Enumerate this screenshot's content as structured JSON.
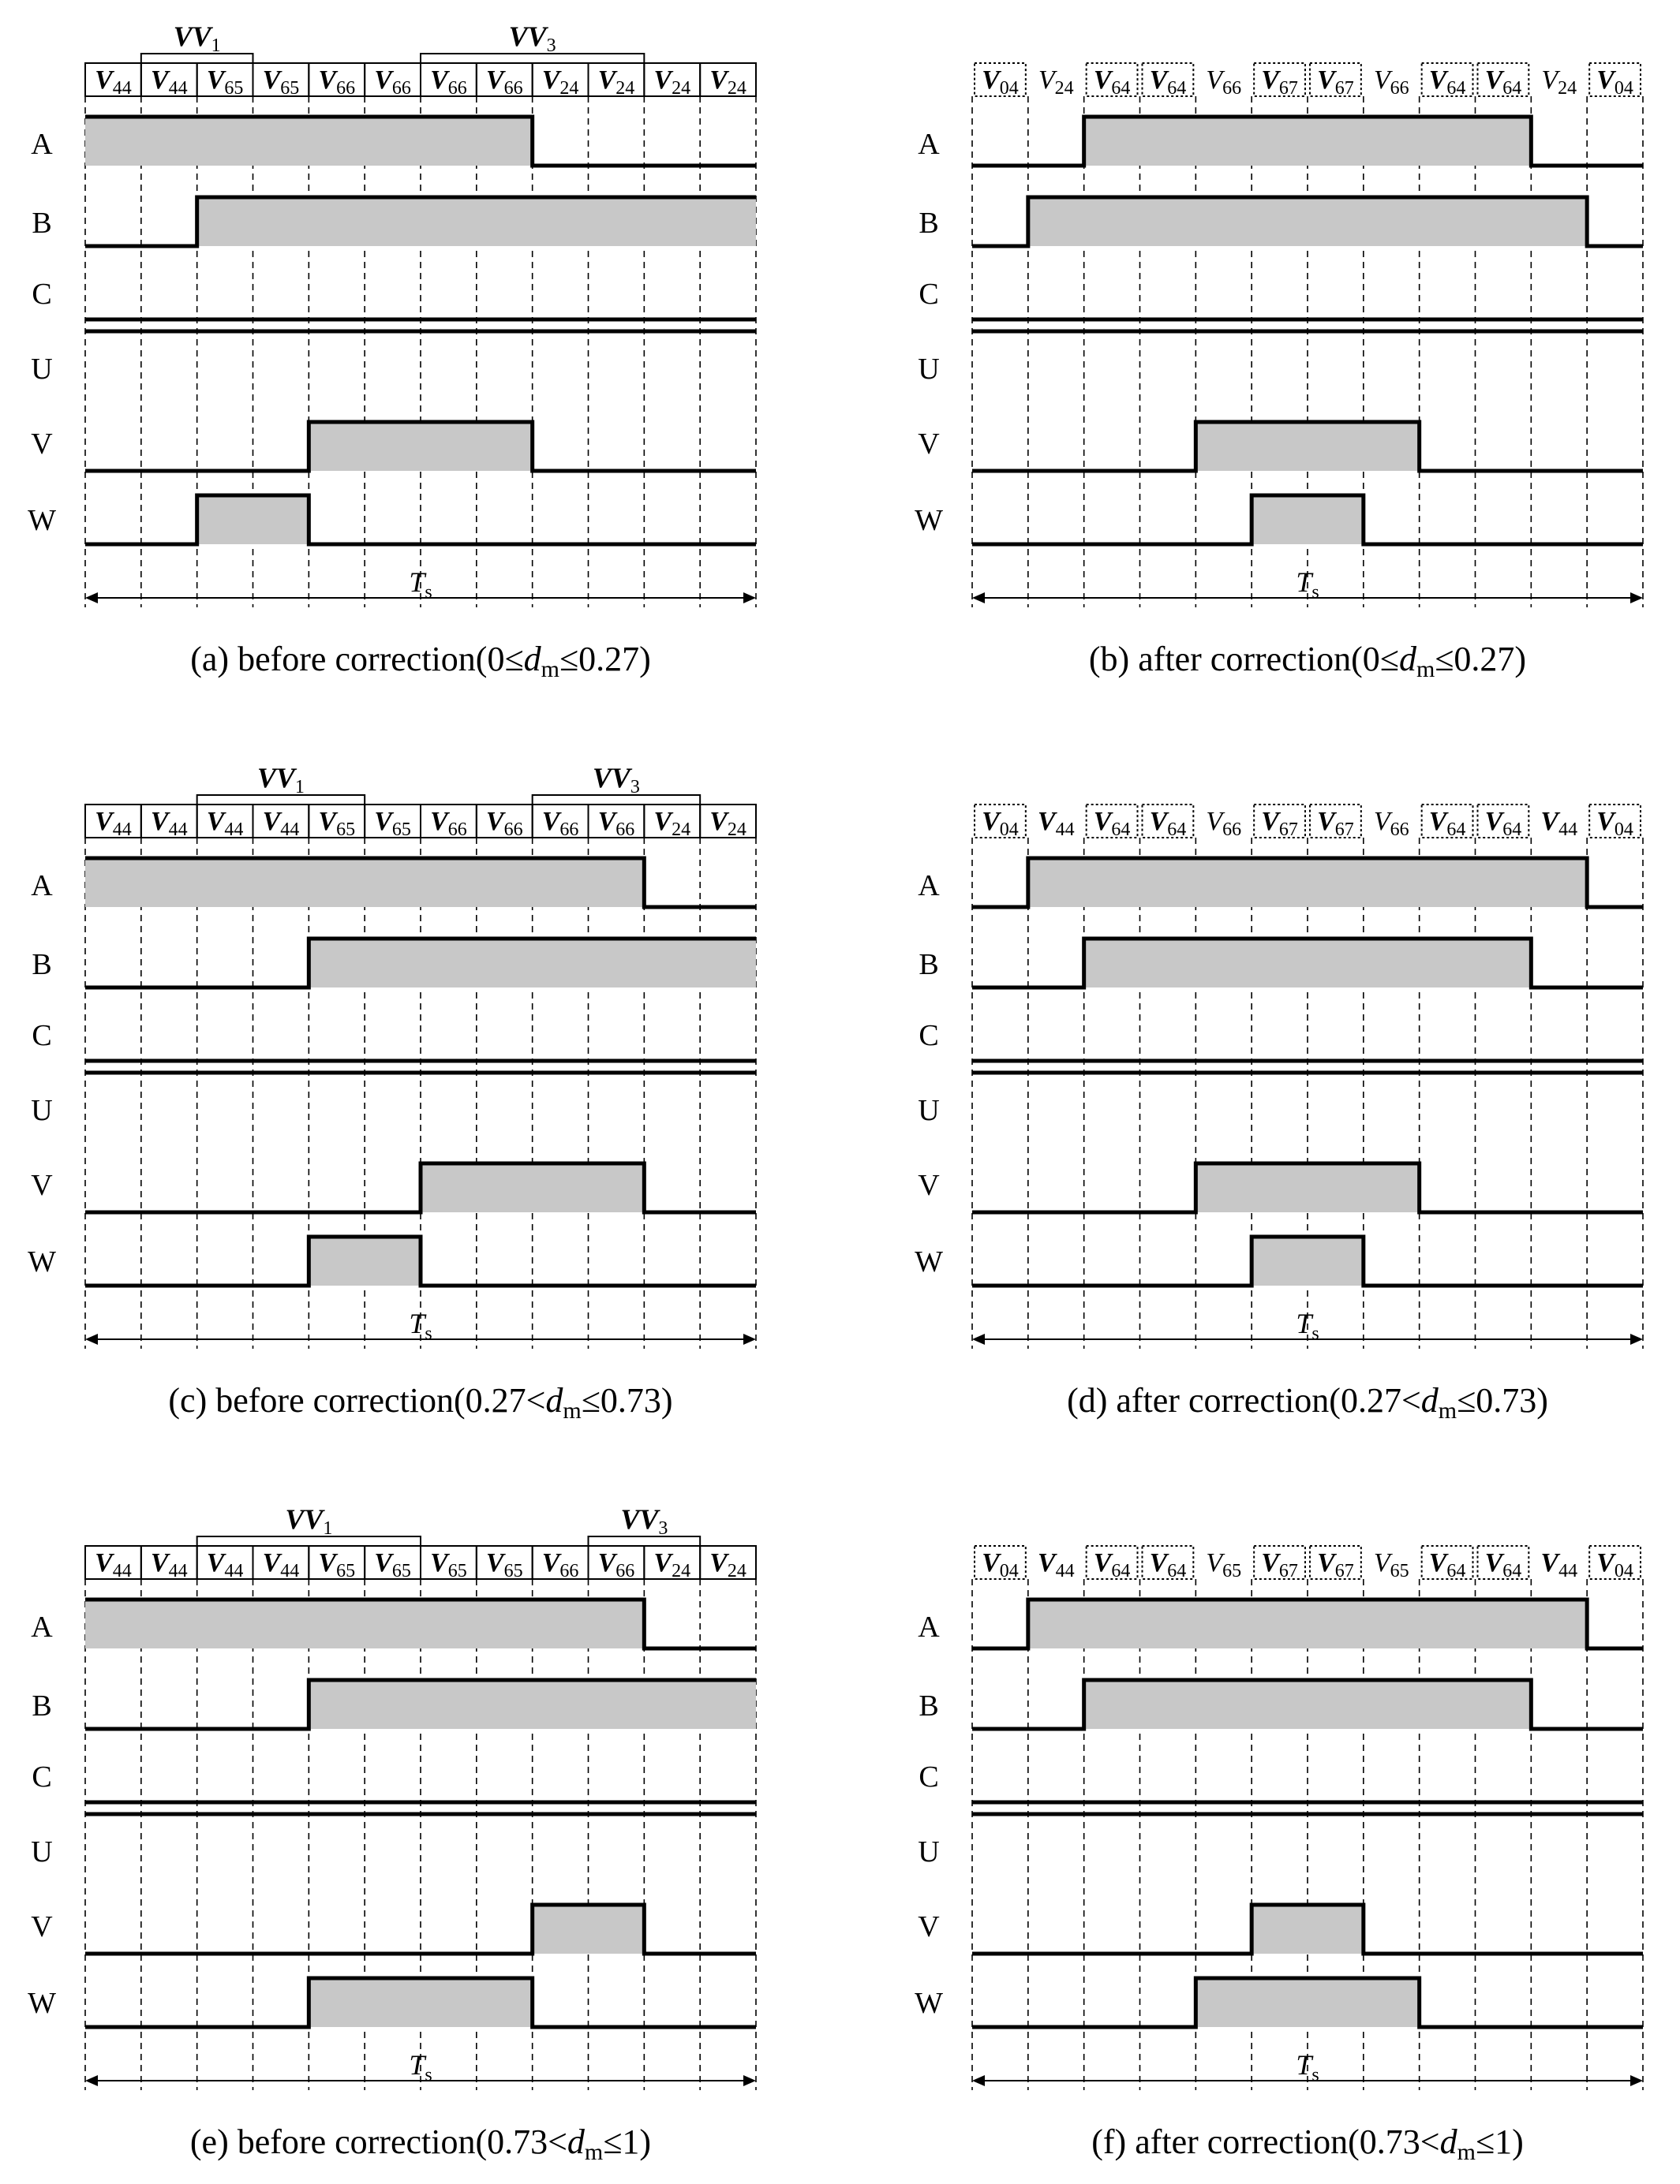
{
  "colors": {
    "fill": "#c8c8c8",
    "line": "#000000",
    "dash": "#000000"
  },
  "rows": [
    "A",
    "B",
    "C",
    "U",
    "V",
    "W"
  ],
  "ts_label": {
    "main": "T",
    "sub": "s"
  },
  "panels": [
    {
      "id": "a",
      "segments": [
        "44",
        "44",
        "65",
        "65",
        "66",
        "66",
        "66",
        "66",
        "24",
        "24",
        "24",
        "24"
      ],
      "boxed": [
        true,
        true,
        true,
        true,
        true,
        true,
        true,
        true,
        true,
        true,
        true,
        true
      ],
      "box_style": "solid",
      "bold_index": [
        true,
        true,
        true,
        true,
        true,
        true,
        true,
        true,
        true,
        true,
        true,
        true
      ],
      "braces": [
        {
          "label": "VV",
          "sub": "1",
          "from": 1,
          "to": 3
        },
        {
          "label": "VV",
          "sub": "3",
          "from": 6,
          "to": 10
        }
      ],
      "signals": {
        "A": [
          1,
          1,
          1,
          1,
          1,
          1,
          1,
          1,
          0,
          0,
          0,
          0
        ],
        "B": [
          0,
          0,
          1,
          1,
          1,
          1,
          1,
          1,
          1,
          1,
          1,
          1
        ],
        "C": [
          0,
          0,
          0,
          0,
          0,
          0,
          0,
          0,
          0,
          0,
          0,
          0
        ],
        "U": [
          0,
          0,
          0,
          0,
          0,
          0,
          0,
          0,
          0,
          0,
          0,
          0
        ],
        "V": [
          0,
          0,
          0,
          0,
          1,
          1,
          1,
          1,
          0,
          0,
          0,
          0
        ],
        "W": [
          0,
          0,
          1,
          1,
          0,
          0,
          0,
          0,
          0,
          0,
          0,
          0
        ]
      },
      "caption": {
        "pre": "(a) before correction(0≤",
        "d": "d",
        "sub": "m",
        "post": "≤0.27)"
      }
    },
    {
      "id": "b",
      "segments": [
        "04",
        "24",
        "64",
        "64",
        "66",
        "67",
        "67",
        "66",
        "64",
        "64",
        "24",
        "04"
      ],
      "boxed": [
        true,
        false,
        true,
        true,
        false,
        true,
        true,
        false,
        true,
        true,
        false,
        true
      ],
      "box_style": "dotted",
      "bold_index": [
        true,
        false,
        true,
        true,
        false,
        true,
        true,
        false,
        true,
        true,
        false,
        true
      ],
      "braces": [],
      "signals": {
        "A": [
          0,
          0,
          1,
          1,
          1,
          1,
          1,
          1,
          1,
          1,
          0,
          0
        ],
        "B": [
          0,
          1,
          1,
          1,
          1,
          1,
          1,
          1,
          1,
          1,
          1,
          0
        ],
        "C": [
          0,
          0,
          0,
          0,
          0,
          0,
          0,
          0,
          0,
          0,
          0,
          0
        ],
        "U": [
          0,
          0,
          0,
          0,
          0,
          0,
          0,
          0,
          0,
          0,
          0,
          0
        ],
        "V": [
          0,
          0,
          0,
          0,
          1,
          1,
          1,
          1,
          0,
          0,
          0,
          0
        ],
        "W": [
          0,
          0,
          0,
          0,
          0,
          1,
          1,
          0,
          0,
          0,
          0,
          0
        ]
      },
      "caption": {
        "pre": "(b) after correction(0≤",
        "d": "d",
        "sub": "m",
        "post": "≤0.27)"
      }
    },
    {
      "id": "c",
      "segments": [
        "44",
        "44",
        "44",
        "44",
        "65",
        "65",
        "66",
        "66",
        "66",
        "66",
        "24",
        "24"
      ],
      "boxed": [
        true,
        true,
        true,
        true,
        true,
        true,
        true,
        true,
        true,
        true,
        true,
        true
      ],
      "box_style": "solid",
      "bold_index": [
        true,
        true,
        true,
        true,
        true,
        true,
        true,
        true,
        true,
        true,
        true,
        true
      ],
      "braces": [
        {
          "label": "VV",
          "sub": "1",
          "from": 2,
          "to": 5
        },
        {
          "label": "VV",
          "sub": "3",
          "from": 8,
          "to": 11
        }
      ],
      "signals": {
        "A": [
          1,
          1,
          1,
          1,
          1,
          1,
          1,
          1,
          1,
          1,
          0,
          0
        ],
        "B": [
          0,
          0,
          0,
          0,
          1,
          1,
          1,
          1,
          1,
          1,
          1,
          1
        ],
        "C": [
          0,
          0,
          0,
          0,
          0,
          0,
          0,
          0,
          0,
          0,
          0,
          0
        ],
        "U": [
          0,
          0,
          0,
          0,
          0,
          0,
          0,
          0,
          0,
          0,
          0,
          0
        ],
        "V": [
          0,
          0,
          0,
          0,
          0,
          0,
          1,
          1,
          1,
          1,
          0,
          0
        ],
        "W": [
          0,
          0,
          0,
          0,
          1,
          1,
          0,
          0,
          0,
          0,
          0,
          0
        ]
      },
      "caption": {
        "pre": "(c) before correction(0.27<",
        "d": "d",
        "sub": "m",
        "post": "≤0.73)"
      }
    },
    {
      "id": "d",
      "segments": [
        "04",
        "44",
        "64",
        "64",
        "66",
        "67",
        "67",
        "66",
        "64",
        "64",
        "44",
        "04"
      ],
      "boxed": [
        true,
        false,
        true,
        true,
        false,
        true,
        true,
        false,
        true,
        true,
        false,
        true
      ],
      "box_style": "dotted",
      "bold_index": [
        true,
        true,
        true,
        true,
        false,
        true,
        true,
        false,
        true,
        true,
        true,
        true
      ],
      "braces": [],
      "signals": {
        "A": [
          0,
          1,
          1,
          1,
          1,
          1,
          1,
          1,
          1,
          1,
          1,
          0
        ],
        "B": [
          0,
          0,
          1,
          1,
          1,
          1,
          1,
          1,
          1,
          1,
          0,
          0
        ],
        "C": [
          0,
          0,
          0,
          0,
          0,
          0,
          0,
          0,
          0,
          0,
          0,
          0
        ],
        "U": [
          0,
          0,
          0,
          0,
          0,
          0,
          0,
          0,
          0,
          0,
          0,
          0
        ],
        "V": [
          0,
          0,
          0,
          0,
          1,
          1,
          1,
          1,
          0,
          0,
          0,
          0
        ],
        "W": [
          0,
          0,
          0,
          0,
          0,
          1,
          1,
          0,
          0,
          0,
          0,
          0
        ]
      },
      "caption": {
        "pre": "(d) after correction(0.27<",
        "d": "d",
        "sub": "m",
        "post": "≤0.73)"
      }
    },
    {
      "id": "e",
      "segments": [
        "44",
        "44",
        "44",
        "44",
        "65",
        "65",
        "65",
        "65",
        "66",
        "66",
        "24",
        "24"
      ],
      "boxed": [
        true,
        true,
        true,
        true,
        true,
        true,
        true,
        true,
        true,
        true,
        true,
        true
      ],
      "box_style": "solid",
      "bold_index": [
        true,
        true,
        true,
        true,
        true,
        true,
        true,
        true,
        true,
        true,
        true,
        true
      ],
      "braces": [
        {
          "label": "VV",
          "sub": "1",
          "from": 2,
          "to": 6
        },
        {
          "label": "VV",
          "sub": "3",
          "from": 9,
          "to": 11
        }
      ],
      "signals": {
        "A": [
          1,
          1,
          1,
          1,
          1,
          1,
          1,
          1,
          1,
          1,
          0,
          0
        ],
        "B": [
          0,
          0,
          0,
          0,
          1,
          1,
          1,
          1,
          1,
          1,
          1,
          1
        ],
        "C": [
          0,
          0,
          0,
          0,
          0,
          0,
          0,
          0,
          0,
          0,
          0,
          0
        ],
        "U": [
          0,
          0,
          0,
          0,
          0,
          0,
          0,
          0,
          0,
          0,
          0,
          0
        ],
        "V": [
          0,
          0,
          0,
          0,
          0,
          0,
          0,
          0,
          1,
          1,
          0,
          0
        ],
        "W": [
          0,
          0,
          0,
          0,
          1,
          1,
          1,
          1,
          0,
          0,
          0,
          0
        ]
      },
      "caption": {
        "pre": "(e) before correction(0.73<",
        "d": "d",
        "sub": "m",
        "post": "≤1)"
      }
    },
    {
      "id": "f",
      "segments": [
        "04",
        "44",
        "64",
        "64",
        "65",
        "67",
        "67",
        "65",
        "64",
        "64",
        "44",
        "04"
      ],
      "boxed": [
        true,
        false,
        true,
        true,
        false,
        true,
        true,
        false,
        true,
        true,
        false,
        true
      ],
      "box_style": "dotted",
      "bold_index": [
        true,
        true,
        true,
        true,
        false,
        true,
        true,
        false,
        true,
        true,
        true,
        true
      ],
      "braces": [],
      "signals": {
        "A": [
          0,
          1,
          1,
          1,
          1,
          1,
          1,
          1,
          1,
          1,
          1,
          0
        ],
        "B": [
          0,
          0,
          1,
          1,
          1,
          1,
          1,
          1,
          1,
          1,
          0,
          0
        ],
        "C": [
          0,
          0,
          0,
          0,
          0,
          0,
          0,
          0,
          0,
          0,
          0,
          0
        ],
        "U": [
          0,
          0,
          0,
          0,
          0,
          0,
          0,
          0,
          0,
          0,
          0,
          0
        ],
        "V": [
          0,
          0,
          0,
          0,
          0,
          1,
          1,
          0,
          0,
          0,
          0,
          0
        ],
        "W": [
          0,
          0,
          0,
          0,
          1,
          1,
          1,
          1,
          0,
          0,
          0,
          0
        ]
      },
      "caption": {
        "pre": "(f) after correction(0.73<",
        "d": "d",
        "sub": "m",
        "post": "≤1)"
      }
    }
  ]
}
